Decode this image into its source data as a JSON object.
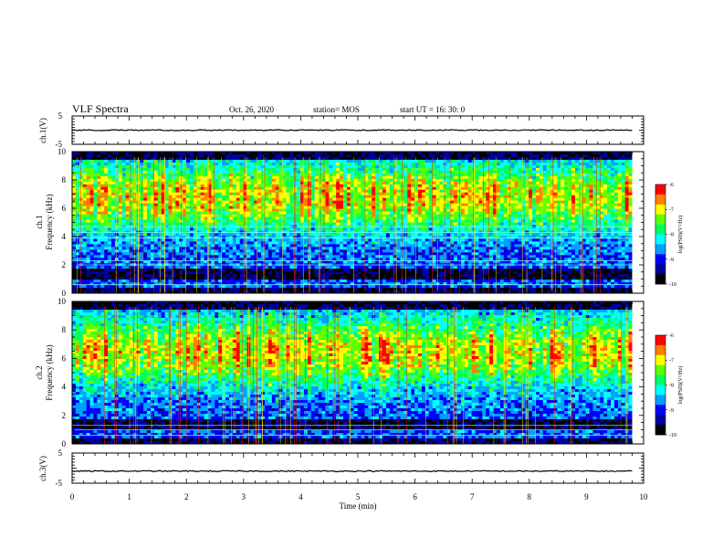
{
  "header": {
    "title": "VLF Spectra",
    "date": "Oct. 26, 2020",
    "station": "station= MOS",
    "start": "start  UT =   16: 30: 0"
  },
  "chart_data": {
    "type": "heatmap",
    "xlabel": "Time  (min)",
    "xlim": [
      0,
      10
    ],
    "xticks": [
      "0",
      "1",
      "2",
      "3",
      "4",
      "5",
      "6",
      "7",
      "8",
      "9",
      "10"
    ],
    "data_extent_min": 9.8,
    "panels": [
      {
        "id": "ch1-voltage",
        "ylabel": "ch.1(V)",
        "ylim": [
          -5,
          5
        ],
        "yticks": [
          "5",
          "-5"
        ],
        "trace_level": 0
      },
      {
        "id": "ch1-spectrogram",
        "ylabel_line1": "ch.1",
        "ylabel_line2": "Frequency  (kHz)",
        "ylim": [
          0,
          10
        ],
        "yticks": [
          "0",
          "2",
          "4",
          "6",
          "8",
          "10"
        ],
        "colorbar": {
          "label": "log(PSD)(V²/Hz)",
          "range": [
            -10,
            -6
          ],
          "ticks": [
            "-6",
            "-7",
            "-8",
            "-9",
            "-10"
          ]
        },
        "band_peak_khz": 6.8,
        "dark_bands_khz": [
          1.2,
          1.6,
          0.2,
          9.7
        ],
        "cyan_lines_khz": [
          2.0,
          2.3,
          3.9,
          4.3,
          4.7,
          0.6
        ]
      },
      {
        "id": "ch2-spectrogram",
        "ylabel_line1": "ch.2",
        "ylabel_line2": "Frequency  (kHz)",
        "ylim": [
          0,
          10
        ],
        "yticks": [
          "0",
          "2",
          "4",
          "6",
          "8",
          "10"
        ],
        "colorbar": {
          "label": "log(PSD)(V²/Hz)",
          "range": [
            -10,
            -6
          ],
          "ticks": [
            "-6",
            "-7",
            "-8",
            "-9",
            "-10"
          ]
        },
        "band_peak_khz": 6.5,
        "dark_bands_khz": [
          1.2,
          1.6,
          0.2,
          9.7
        ],
        "cyan_lines_khz": [
          1.3,
          1.0,
          0.6
        ]
      },
      {
        "id": "ch3-voltage",
        "ylabel": "ch.3(V)",
        "ylim": [
          -5,
          5
        ],
        "yticks": [
          "5",
          "-5"
        ],
        "trace_level": -1
      }
    ],
    "colormap": [
      "#000000",
      "#0000a0",
      "#0000ff",
      "#00a0ff",
      "#00ffff",
      "#00ff60",
      "#60ff00",
      "#ffff00",
      "#ff8000",
      "#ff0000",
      "#ffd0d0",
      "#ffffff"
    ]
  }
}
